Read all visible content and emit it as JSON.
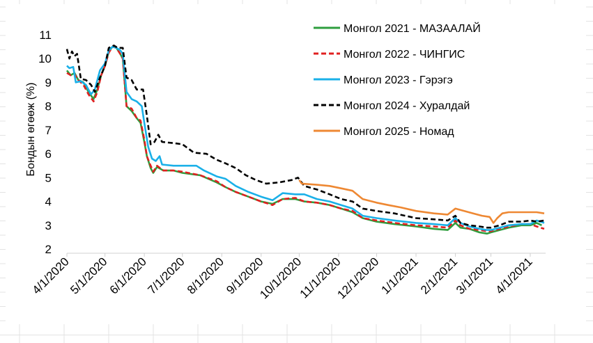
{
  "chart_data": {
    "type": "line",
    "title": "",
    "xlabel": "",
    "ylabel": "Бондын өгөөж (%)",
    "ylim": [
      2,
      11
    ],
    "y_ticks": [
      2,
      3,
      4,
      5,
      6,
      7,
      8,
      9,
      10,
      11
    ],
    "x_ticks": [
      "4/1/2020",
      "5/1/2020",
      "6/1/2020",
      "7/1/2020",
      "8/1/2020",
      "9/1/2020",
      "10/1/2020",
      "11/1/2020",
      "12/1/2020",
      "1/1/2021",
      "2/1/2021",
      "3/1/2021",
      "4/1/2021"
    ],
    "xlim": [
      "2020-04-01",
      "2021-04-12"
    ],
    "grid": false,
    "legend_position": "top-right",
    "series": [
      {
        "name": "Монгол 2021 - МАЗААЛАЙ",
        "color": "#2e9e3e",
        "dash": "solid",
        "points": [
          [
            "2020-04-01",
            9.5
          ],
          [
            "2020-04-04",
            9.3
          ],
          [
            "2020-04-07",
            9.4
          ],
          [
            "2020-04-10",
            9.1
          ],
          [
            "2020-04-14",
            9.0
          ],
          [
            "2020-04-18",
            8.6
          ],
          [
            "2020-04-22",
            8.3
          ],
          [
            "2020-04-25",
            8.7
          ],
          [
            "2020-04-28",
            9.3
          ],
          [
            "2020-05-01",
            9.7
          ],
          [
            "2020-05-04",
            10.3
          ],
          [
            "2020-05-07",
            10.5
          ],
          [
            "2020-05-10",
            10.45
          ],
          [
            "2020-05-13",
            10.2
          ],
          [
            "2020-05-15",
            10.0
          ],
          [
            "2020-05-18",
            8.0
          ],
          [
            "2020-05-22",
            7.8
          ],
          [
            "2020-05-26",
            7.5
          ],
          [
            "2020-05-29",
            7.3
          ],
          [
            "2020-06-01",
            6.5
          ],
          [
            "2020-06-03",
            5.9
          ],
          [
            "2020-06-06",
            5.4
          ],
          [
            "2020-06-08",
            5.2
          ],
          [
            "2020-06-11",
            5.45
          ],
          [
            "2020-06-16",
            5.3
          ],
          [
            "2020-06-24",
            5.3
          ],
          [
            "2020-07-01",
            5.2
          ],
          [
            "2020-07-15",
            5.1
          ],
          [
            "2020-07-28",
            4.8
          ],
          [
            "2020-08-04",
            4.6
          ],
          [
            "2020-08-12",
            4.4
          ],
          [
            "2020-08-22",
            4.2
          ],
          [
            "2020-09-01",
            4.0
          ],
          [
            "2020-09-10",
            3.9
          ],
          [
            "2020-09-18",
            4.1
          ],
          [
            "2020-09-28",
            4.1
          ],
          [
            "2020-10-05",
            4.0
          ],
          [
            "2020-10-15",
            3.95
          ],
          [
            "2020-10-25",
            3.85
          ],
          [
            "2020-11-03",
            3.7
          ],
          [
            "2020-11-12",
            3.55
          ],
          [
            "2020-11-20",
            3.3
          ],
          [
            "2020-12-01",
            3.15
          ],
          [
            "2020-12-15",
            3.05
          ],
          [
            "2021-01-01",
            2.95
          ],
          [
            "2021-01-15",
            2.85
          ],
          [
            "2021-01-26",
            2.8
          ],
          [
            "2021-02-01",
            3.1
          ],
          [
            "2021-02-05",
            2.9
          ],
          [
            "2021-02-12",
            2.85
          ],
          [
            "2021-02-20",
            2.7
          ],
          [
            "2021-02-26",
            2.65
          ],
          [
            "2021-03-01",
            2.7
          ],
          [
            "2021-03-08",
            2.8
          ],
          [
            "2021-03-15",
            2.9
          ],
          [
            "2021-03-25",
            3.0
          ],
          [
            "2021-04-01",
            3.0
          ],
          [
            "2021-04-06",
            3.1
          ],
          [
            "2021-04-10",
            3.0
          ]
        ]
      },
      {
        "name": "Монгол 2022 - ЧИНГИС",
        "color": "#e02020",
        "dash": "dashed",
        "points": [
          [
            "2020-04-01",
            9.4
          ],
          [
            "2020-04-04",
            9.3
          ],
          [
            "2020-04-07",
            9.35
          ],
          [
            "2020-04-10",
            9.1
          ],
          [
            "2020-04-14",
            8.9
          ],
          [
            "2020-04-18",
            8.5
          ],
          [
            "2020-04-22",
            8.2
          ],
          [
            "2020-04-25",
            8.6
          ],
          [
            "2020-04-28",
            9.3
          ],
          [
            "2020-05-01",
            9.7
          ],
          [
            "2020-05-04",
            10.25
          ],
          [
            "2020-05-07",
            10.5
          ],
          [
            "2020-05-10",
            10.45
          ],
          [
            "2020-05-13",
            10.2
          ],
          [
            "2020-05-15",
            10.0
          ],
          [
            "2020-05-18",
            8.0
          ],
          [
            "2020-05-22",
            7.9
          ],
          [
            "2020-05-26",
            7.5
          ],
          [
            "2020-05-29",
            7.4
          ],
          [
            "2020-06-01",
            6.6
          ],
          [
            "2020-06-03",
            5.9
          ],
          [
            "2020-06-06",
            5.5
          ],
          [
            "2020-06-08",
            5.25
          ],
          [
            "2020-06-11",
            5.5
          ],
          [
            "2020-06-16",
            5.3
          ],
          [
            "2020-06-24",
            5.3
          ],
          [
            "2020-07-01",
            5.25
          ],
          [
            "2020-07-15",
            5.1
          ],
          [
            "2020-07-28",
            4.85
          ],
          [
            "2020-08-04",
            4.6
          ],
          [
            "2020-08-12",
            4.4
          ],
          [
            "2020-08-22",
            4.2
          ],
          [
            "2020-09-01",
            4.0
          ],
          [
            "2020-09-10",
            3.85
          ],
          [
            "2020-09-18",
            4.1
          ],
          [
            "2020-09-28",
            4.15
          ],
          [
            "2020-10-05",
            4.0
          ],
          [
            "2020-10-15",
            3.95
          ],
          [
            "2020-10-25",
            3.85
          ],
          [
            "2020-11-03",
            3.7
          ],
          [
            "2020-11-12",
            3.6
          ],
          [
            "2020-11-20",
            3.3
          ],
          [
            "2020-12-01",
            3.2
          ],
          [
            "2020-12-15",
            3.1
          ],
          [
            "2021-01-01",
            3.0
          ],
          [
            "2021-01-15",
            2.95
          ],
          [
            "2021-01-26",
            2.9
          ],
          [
            "2021-02-01",
            3.2
          ],
          [
            "2021-02-05",
            3.0
          ],
          [
            "2021-02-12",
            2.85
          ],
          [
            "2021-02-20",
            2.8
          ],
          [
            "2021-02-26",
            2.75
          ],
          [
            "2021-03-01",
            2.75
          ],
          [
            "2021-03-08",
            2.85
          ],
          [
            "2021-03-15",
            2.95
          ],
          [
            "2021-03-25",
            3.05
          ],
          [
            "2021-04-01",
            3.05
          ],
          [
            "2021-04-06",
            2.95
          ],
          [
            "2021-04-12",
            2.85
          ]
        ]
      },
      {
        "name": "Монгол 2023 - Гэрэгэ",
        "color": "#1ab0e8",
        "dash": "solid",
        "points": [
          [
            "2020-04-01",
            9.7
          ],
          [
            "2020-04-03",
            9.6
          ],
          [
            "2020-04-06",
            9.65
          ],
          [
            "2020-04-08",
            9.0
          ],
          [
            "2020-04-12",
            9.05
          ],
          [
            "2020-04-16",
            8.9
          ],
          [
            "2020-04-20",
            8.5
          ],
          [
            "2020-04-23",
            8.7
          ],
          [
            "2020-04-27",
            9.5
          ],
          [
            "2020-05-01",
            9.8
          ],
          [
            "2020-05-04",
            10.35
          ],
          [
            "2020-05-07",
            10.5
          ],
          [
            "2020-05-10",
            10.45
          ],
          [
            "2020-05-13",
            10.35
          ],
          [
            "2020-05-15",
            10.2
          ],
          [
            "2020-05-18",
            8.6
          ],
          [
            "2020-05-22",
            8.3
          ],
          [
            "2020-05-26",
            8.2
          ],
          [
            "2020-05-30",
            8.0
          ],
          [
            "2020-06-01",
            7.3
          ],
          [
            "2020-06-04",
            6.3
          ],
          [
            "2020-06-07",
            5.8
          ],
          [
            "2020-06-10",
            5.7
          ],
          [
            "2020-06-13",
            5.9
          ],
          [
            "2020-06-15",
            5.55
          ],
          [
            "2020-06-24",
            5.5
          ],
          [
            "2020-07-01",
            5.5
          ],
          [
            "2020-07-12",
            5.5
          ],
          [
            "2020-07-18",
            5.3
          ],
          [
            "2020-07-28",
            5.05
          ],
          [
            "2020-08-04",
            4.95
          ],
          [
            "2020-08-12",
            4.65
          ],
          [
            "2020-08-22",
            4.4
          ],
          [
            "2020-09-01",
            4.2
          ],
          [
            "2020-09-10",
            4.05
          ],
          [
            "2020-09-18",
            4.35
          ],
          [
            "2020-09-28",
            4.3
          ],
          [
            "2020-10-05",
            4.3
          ],
          [
            "2020-10-15",
            4.1
          ],
          [
            "2020-10-25",
            4.0
          ],
          [
            "2020-11-03",
            3.85
          ],
          [
            "2020-11-12",
            3.7
          ],
          [
            "2020-11-20",
            3.4
          ],
          [
            "2020-12-01",
            3.3
          ],
          [
            "2020-12-15",
            3.2
          ],
          [
            "2021-01-01",
            3.1
          ],
          [
            "2021-01-15",
            3.05
          ],
          [
            "2021-01-26",
            3.0
          ],
          [
            "2021-02-01",
            3.3
          ],
          [
            "2021-02-05",
            3.1
          ],
          [
            "2021-02-12",
            2.95
          ],
          [
            "2021-02-20",
            2.85
          ],
          [
            "2021-02-26",
            2.8
          ],
          [
            "2021-03-01",
            2.8
          ],
          [
            "2021-03-08",
            2.9
          ],
          [
            "2021-03-15",
            3.0
          ],
          [
            "2021-03-25",
            3.05
          ],
          [
            "2021-04-01",
            3.05
          ],
          [
            "2021-04-06",
            3.2
          ],
          [
            "2021-04-12",
            3.1
          ]
        ]
      },
      {
        "name": "Монгол 2024 - Хуралдай",
        "color": "#000000",
        "dash": "dashed",
        "points": [
          [
            "2020-04-01",
            10.4
          ],
          [
            "2020-04-03",
            10.0
          ],
          [
            "2020-04-05",
            10.3
          ],
          [
            "2020-04-07",
            10.1
          ],
          [
            "2020-04-09",
            10.2
          ],
          [
            "2020-04-12",
            9.15
          ],
          [
            "2020-04-16",
            9.1
          ],
          [
            "2020-04-20",
            8.9
          ],
          [
            "2020-04-23",
            8.6
          ],
          [
            "2020-04-27",
            9.2
          ],
          [
            "2020-05-01",
            9.7
          ],
          [
            "2020-05-04",
            10.45
          ],
          [
            "2020-05-08",
            10.55
          ],
          [
            "2020-05-11",
            10.45
          ],
          [
            "2020-05-15",
            10.45
          ],
          [
            "2020-05-18",
            9.2
          ],
          [
            "2020-05-22",
            9.1
          ],
          [
            "2020-05-26",
            8.7
          ],
          [
            "2020-05-31",
            8.7
          ],
          [
            "2020-06-03",
            7.6
          ],
          [
            "2020-06-06",
            6.4
          ],
          [
            "2020-06-09",
            6.5
          ],
          [
            "2020-06-12",
            6.8
          ],
          [
            "2020-06-15",
            6.5
          ],
          [
            "2020-06-24",
            6.45
          ],
          [
            "2020-07-01",
            6.4
          ],
          [
            "2020-07-10",
            6.05
          ],
          [
            "2020-07-20",
            6.0
          ],
          [
            "2020-07-28",
            5.75
          ],
          [
            "2020-08-04",
            5.6
          ],
          [
            "2020-08-12",
            5.4
          ],
          [
            "2020-08-20",
            5.1
          ],
          [
            "2020-08-28",
            4.9
          ],
          [
            "2020-09-05",
            4.75
          ],
          [
            "2020-09-15",
            4.8
          ],
          [
            "2020-09-25",
            4.9
          ],
          [
            "2020-09-30",
            5.0
          ],
          [
            "2020-10-05",
            4.65
          ],
          [
            "2020-10-15",
            4.5
          ],
          [
            "2020-10-25",
            4.3
          ],
          [
            "2020-11-03",
            4.1
          ],
          [
            "2020-11-12",
            4.0
          ],
          [
            "2020-11-20",
            3.7
          ],
          [
            "2020-12-01",
            3.6
          ],
          [
            "2020-12-15",
            3.5
          ],
          [
            "2021-01-01",
            3.3
          ],
          [
            "2021-01-15",
            3.25
          ],
          [
            "2021-01-26",
            3.2
          ],
          [
            "2021-02-01",
            3.4
          ],
          [
            "2021-02-05",
            3.1
          ],
          [
            "2021-02-12",
            3.0
          ],
          [
            "2021-02-20",
            2.95
          ],
          [
            "2021-02-26",
            2.9
          ],
          [
            "2021-03-01",
            2.9
          ],
          [
            "2021-03-08",
            3.0
          ],
          [
            "2021-03-15",
            3.15
          ],
          [
            "2021-03-25",
            3.15
          ],
          [
            "2021-04-01",
            3.2
          ],
          [
            "2021-04-06",
            3.15
          ],
          [
            "2021-04-12",
            3.2
          ]
        ]
      },
      {
        "name": "Монгол 2025 - Номад",
        "color": "#ee8833",
        "dash": "solid",
        "points": [
          [
            "2020-10-01",
            4.9
          ],
          [
            "2020-10-03",
            4.75
          ],
          [
            "2020-10-15",
            4.7
          ],
          [
            "2020-10-25",
            4.65
          ],
          [
            "2020-11-03",
            4.55
          ],
          [
            "2020-11-12",
            4.45
          ],
          [
            "2020-11-20",
            4.1
          ],
          [
            "2020-12-01",
            3.95
          ],
          [
            "2020-12-10",
            3.85
          ],
          [
            "2020-12-20",
            3.75
          ],
          [
            "2021-01-01",
            3.6
          ],
          [
            "2021-01-15",
            3.5
          ],
          [
            "2021-01-26",
            3.45
          ],
          [
            "2021-02-01",
            3.7
          ],
          [
            "2021-02-08",
            3.6
          ],
          [
            "2021-02-15",
            3.5
          ],
          [
            "2021-02-22",
            3.4
          ],
          [
            "2021-02-28",
            3.35
          ],
          [
            "2021-03-03",
            3.1
          ],
          [
            "2021-03-06",
            3.3
          ],
          [
            "2021-03-10",
            3.5
          ],
          [
            "2021-03-15",
            3.55
          ],
          [
            "2021-03-25",
            3.55
          ],
          [
            "2021-04-01",
            3.55
          ],
          [
            "2021-04-06",
            3.55
          ],
          [
            "2021-04-12",
            3.5
          ]
        ]
      }
    ]
  }
}
